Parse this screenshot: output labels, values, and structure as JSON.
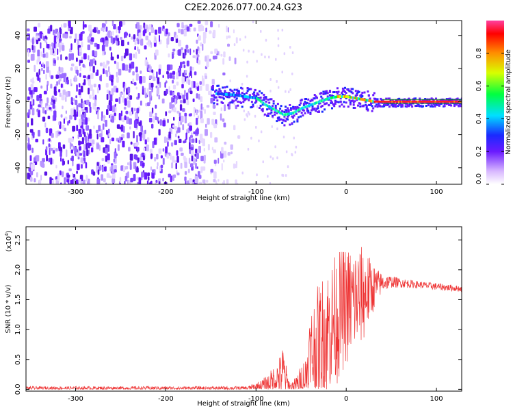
{
  "title": "C2E2.2026.077.00.24.G23",
  "chart_data": [
    {
      "type": "heatmap",
      "name": "spectrogram",
      "xlabel": "Height of straight line (km)",
      "ylabel": "Frequency (Hz)",
      "xlim": [
        -355,
        128
      ],
      "ylim": [
        -50,
        49
      ],
      "xticks": [
        -300,
        -200,
        -100,
        0,
        100
      ],
      "xtick_labels": [
        "-300",
        "-200",
        "-100",
        "0",
        "100"
      ],
      "yticks": [
        -40,
        -20,
        0,
        20,
        40
      ],
      "ytick_labels": [
        "-40",
        "-20",
        "0",
        "20",
        "40"
      ],
      "noise_region_x": [
        -355,
        -125
      ],
      "signal_band": {
        "x": [
          -150,
          -125,
          -100,
          -90,
          -80,
          -70,
          -60,
          -50,
          -40,
          -30,
          -20,
          -10,
          0,
          10,
          20,
          30,
          40,
          60,
          80,
          100,
          128
        ],
        "y": [
          5,
          4,
          2,
          -2,
          -5,
          -8,
          -7,
          -4,
          -2,
          0,
          2,
          3,
          3,
          2,
          1,
          0,
          0,
          0,
          0,
          0,
          0
        ]
      },
      "colorbar": {
        "label": "Normalized spectral amplitude",
        "range": [
          0,
          1
        ],
        "ticks": [
          "0.0",
          "0.2",
          "0.4",
          "0.6",
          "0.8"
        ]
      }
    },
    {
      "type": "line",
      "name": "snr",
      "xlabel": "Height of straight line (km)",
      "ylabel": "SNR (10 * v/v)",
      "multiplier_label": "(x10",
      "multiplier_exp": "4",
      "xlim": [
        -355,
        128
      ],
      "ylim": [
        -0.03,
        2.72
      ],
      "xticks": [
        -300,
        -200,
        -100,
        0,
        100
      ],
      "xtick_labels": [
        "-300",
        "-200",
        "-100",
        "0",
        "100"
      ],
      "yticks": [
        0.0,
        0.5,
        1.0,
        1.5,
        2.0,
        2.5
      ],
      "ytick_labels": [
        "0.0",
        "0.5",
        "1.0",
        "1.5",
        "2.0",
        "2.5"
      ],
      "color": "#ee3333",
      "envelope": {
        "x": [
          -355,
          -110,
          -95,
          -88,
          -75,
          -70,
          -65,
          -62,
          -55,
          -45,
          -40,
          -30,
          -20,
          -10,
          0,
          10,
          20,
          30,
          40,
          50,
          60,
          80,
          100,
          128
        ],
        "base": [
          0.02,
          0.02,
          0.05,
          0.08,
          0.2,
          0.3,
          0.1,
          0.05,
          0.08,
          0.2,
          0.5,
          0.8,
          1.0,
          1.2,
          1.4,
          1.5,
          1.6,
          1.7,
          1.78,
          1.8,
          1.78,
          1.75,
          1.72,
          1.68
        ],
        "spread": [
          0.03,
          0.03,
          0.1,
          0.15,
          0.3,
          0.45,
          0.15,
          0.05,
          0.15,
          0.4,
          0.9,
          1.0,
          1.1,
          1.1,
          1.0,
          0.9,
          0.8,
          0.4,
          0.15,
          0.1,
          0.08,
          0.06,
          0.06,
          0.05
        ]
      }
    }
  ]
}
